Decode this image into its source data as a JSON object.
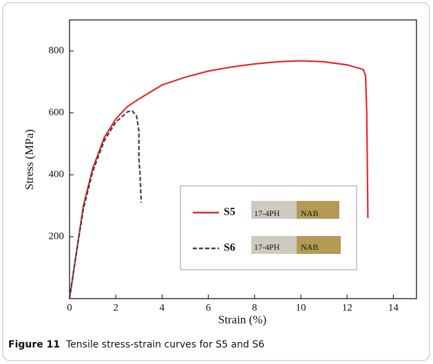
{
  "chart_data": {
    "type": "line",
    "xlabel": "Strain (%)",
    "ylabel": "Stress (MPa)",
    "xlim": [
      0,
      15
    ],
    "ylim": [
      0,
      900
    ],
    "xticks": [
      0,
      2,
      4,
      6,
      8,
      10,
      12,
      14
    ],
    "yticks": [
      200,
      400,
      600,
      800
    ],
    "grid": false,
    "series": [
      {
        "name": "S5",
        "color": "#e8262e",
        "dashed": false,
        "x": [
          0,
          0.3,
          0.6,
          1,
          1.5,
          2,
          2.5,
          3,
          4,
          5,
          6,
          7,
          8,
          9,
          10,
          11,
          12,
          12.7,
          12.8,
          12.85,
          12.88,
          12.9
        ],
        "values": [
          0,
          150,
          300,
          420,
          520,
          580,
          620,
          645,
          690,
          715,
          735,
          748,
          758,
          765,
          768,
          765,
          755,
          740,
          720,
          600,
          400,
          260
        ]
      },
      {
        "name": "S6",
        "color": "#404040",
        "dashed": true,
        "x": [
          0,
          0.3,
          0.6,
          1,
          1.5,
          2,
          2.5,
          2.7,
          2.9,
          3.0,
          3.0,
          3.05,
          3.1
        ],
        "values": [
          0,
          150,
          290,
          410,
          510,
          570,
          603,
          607,
          590,
          540,
          450,
          400,
          310
        ]
      }
    ],
    "annotations": [
      "17-4PH",
      "NAB",
      "17-4PH",
      "NAB"
    ]
  },
  "caption": {
    "label": "Figure 11",
    "text": "Tensile stress-strain curves for S5 and S6"
  }
}
